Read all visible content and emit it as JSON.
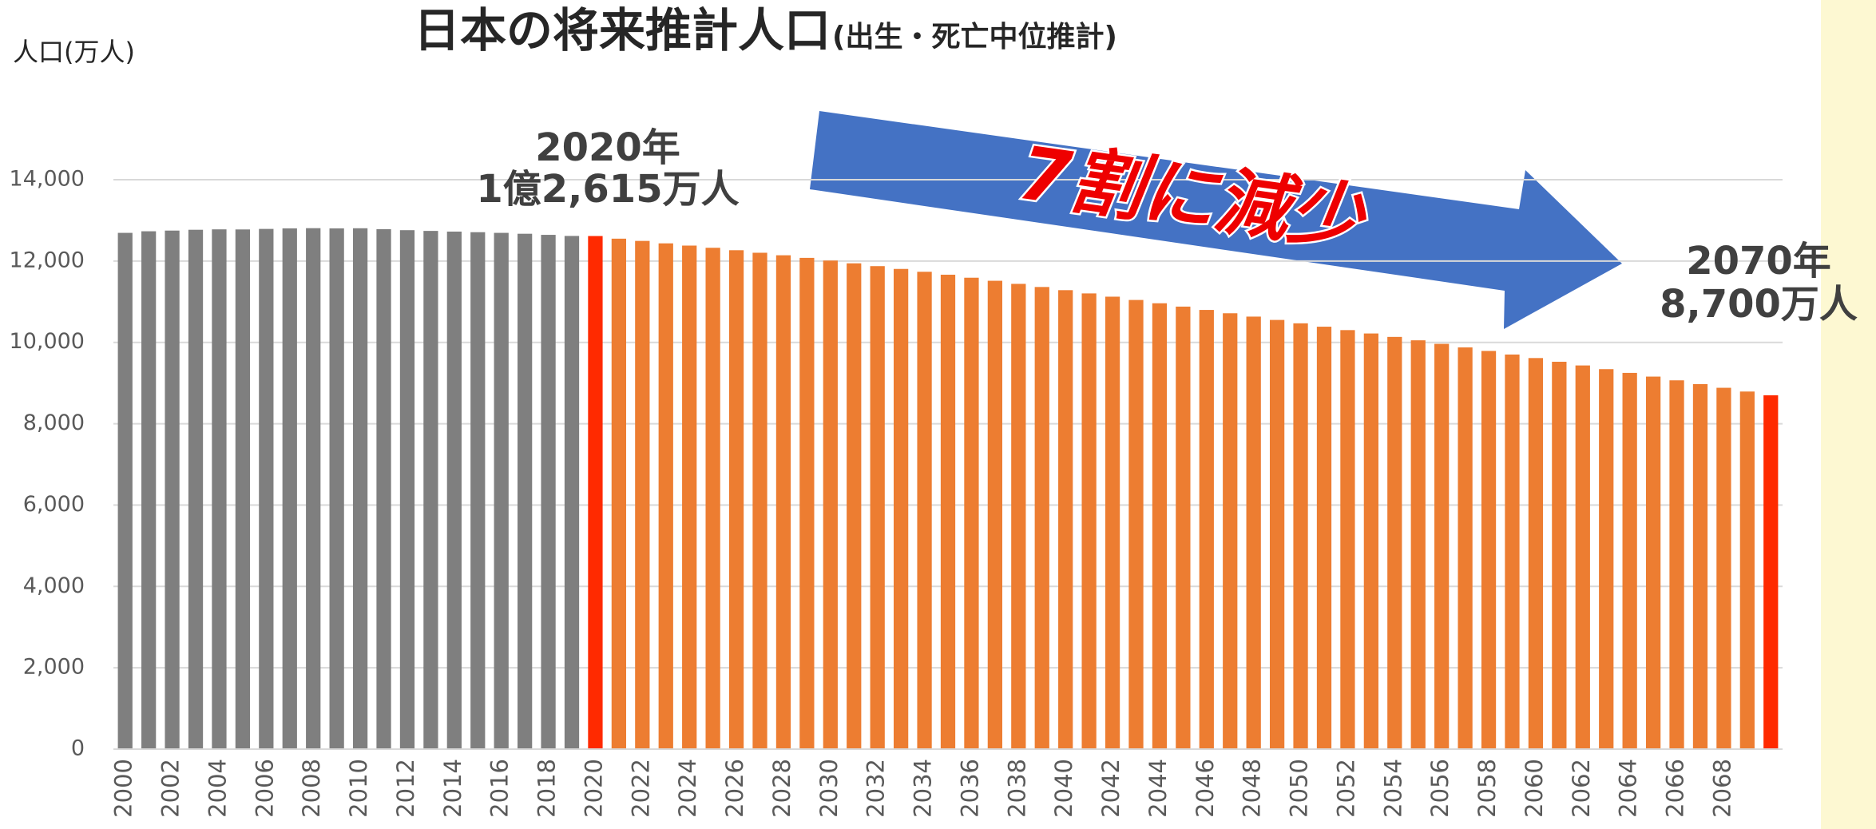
{
  "chart_data": {
    "type": "bar",
    "title": "日本の将来推計人口",
    "subtitle": "(出生・死亡中位推計)",
    "y_label": "人口(万人)",
    "annotations": [
      "2020年",
      "1億2,615万人",
      "2070年",
      "8,700万人",
      "7割に減少"
    ],
    "categories": [
      "2000",
      null,
      "2002",
      null,
      "2004",
      null,
      "2006",
      null,
      "2008",
      null,
      "2010",
      null,
      "2012",
      null,
      "2014",
      null,
      "2016",
      null,
      "2018",
      null,
      "2020",
      null,
      "2022",
      null,
      "2024",
      null,
      "2026",
      null,
      "2028",
      null,
      "2030",
      null,
      "2032",
      null,
      "2034",
      null,
      "2036",
      null,
      "2038",
      null,
      "2040",
      null,
      "2042",
      null,
      "2044",
      null,
      "2046",
      null,
      "2048",
      null,
      "2050",
      null,
      "2052",
      null,
      "2054",
      null,
      "2056",
      null,
      "2058",
      null,
      "2060",
      null,
      "2062",
      null,
      "2064",
      null,
      "2066",
      null,
      "2068",
      null,
      null
    ],
    "values": [
      12693,
      12732,
      12749,
      12769,
      12779,
      12777,
      12790,
      12803,
      12808,
      12803,
      12806,
      12783,
      12759,
      12741,
      12724,
      12709,
      12693,
      12671,
      12644,
      12617,
      12615,
      12550,
      12495,
      12435,
      12380,
      12326,
      12266,
      12204,
      12142,
      12078,
      12012,
      11944,
      11875,
      11806,
      11736,
      11664,
      11590,
      11515,
      11439,
      11362,
      11284,
      11204,
      11124,
      11043,
      10962,
      10880,
      10798,
      10716,
      10634,
      10552,
      10469,
      10386,
      10302,
      10219,
      10135,
      10051,
      9964,
      9877,
      9790,
      9702,
      9615,
      9524,
      9433,
      9342,
      9250,
      9159,
      9067,
      8975,
      8884,
      8792,
      8700
    ],
    "colors": [
      "#7f7f7f",
      "#7f7f7f",
      "#7f7f7f",
      "#7f7f7f",
      "#7f7f7f",
      "#7f7f7f",
      "#7f7f7f",
      "#7f7f7f",
      "#7f7f7f",
      "#7f7f7f",
      "#7f7f7f",
      "#7f7f7f",
      "#7f7f7f",
      "#7f7f7f",
      "#7f7f7f",
      "#7f7f7f",
      "#7f7f7f",
      "#7f7f7f",
      "#7f7f7f",
      "#7f7f7f",
      "#ff2a00",
      "#ed7d31",
      "#ed7d31",
      "#ed7d31",
      "#ed7d31",
      "#ed7d31",
      "#ed7d31",
      "#ed7d31",
      "#ed7d31",
      "#ed7d31",
      "#ed7d31",
      "#ed7d31",
      "#ed7d31",
      "#ed7d31",
      "#ed7d31",
      "#ed7d31",
      "#ed7d31",
      "#ed7d31",
      "#ed7d31",
      "#ed7d31",
      "#ed7d31",
      "#ed7d31",
      "#ed7d31",
      "#ed7d31",
      "#ed7d31",
      "#ed7d31",
      "#ed7d31",
      "#ed7d31",
      "#ed7d31",
      "#ed7d31",
      "#ed7d31",
      "#ed7d31",
      "#ed7d31",
      "#ed7d31",
      "#ed7d31",
      "#ed7d31",
      "#ed7d31",
      "#ed7d31",
      "#ed7d31",
      "#ed7d31",
      "#ed7d31",
      "#ed7d31",
      "#ed7d31",
      "#ed7d31",
      "#ed7d31",
      "#ed7d31",
      "#ed7d31",
      "#ed7d31",
      "#ed7d31",
      "#ed7d31",
      "#ff2a00"
    ],
    "ylim": [
      0,
      14000
    ],
    "yticks": [
      0,
      {
        "value": 2000,
        "label": "2,000"
      },
      {
        "value": 4000,
        "label": "4,000"
      },
      {
        "value": 6000,
        "label": "6,000"
      },
      {
        "value": 8000,
        "label": "8,000"
      },
      {
        "value": 10000,
        "label": "10,000"
      },
      {
        "value": 12000,
        "label": "12,000"
      },
      {
        "value": 14000,
        "label": "14,000"
      }
    ],
    "grid": true
  }
}
